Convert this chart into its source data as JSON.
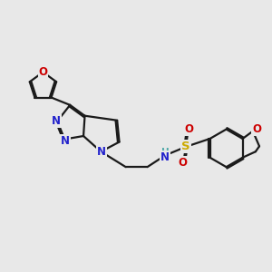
{
  "bg_color": "#e8e8e8",
  "bond_color": "#1a1a1a",
  "N_color": "#2222cc",
  "O_color": "#cc0000",
  "S_color": "#ccaa00",
  "NH_color": "#4ea8a8",
  "figsize": [
    3.0,
    3.0
  ],
  "dpi": 100,
  "lw": 1.6,
  "fs": 8.5,
  "xlim": [
    0,
    10
  ],
  "ylim": [
    1,
    9
  ]
}
